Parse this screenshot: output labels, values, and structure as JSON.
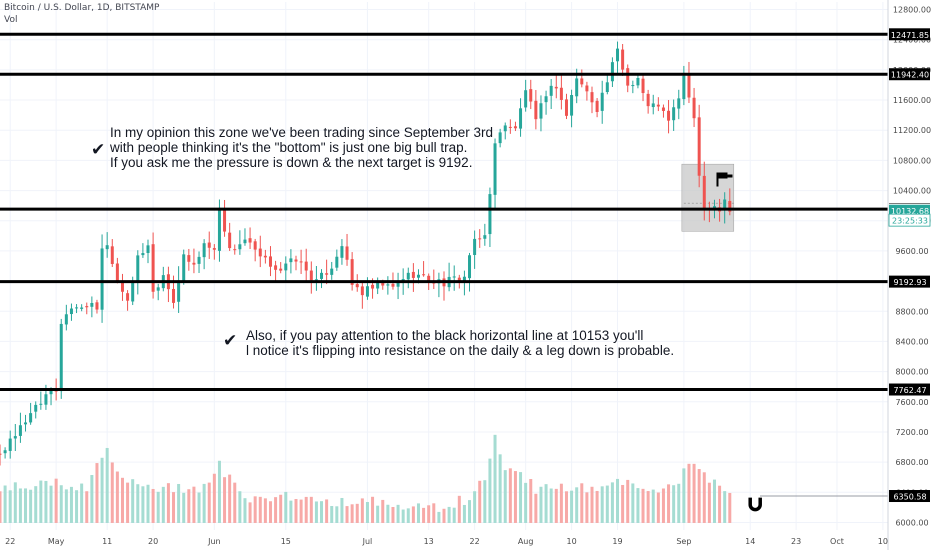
{
  "header": {
    "title": "Bitcoin / U.S. Dollar, 1D, BITSTAMP",
    "volume_label": "Vol"
  },
  "annotations": {
    "note1": {
      "lines": [
        "In my opinion this zone we've been trading since September 3rd",
        "with people thinking it's the \"bottom\" is just one big bull trap.",
        "If you ask me the pressure is down & the next target is 9192."
      ]
    },
    "note2": {
      "lines": [
        "Also, if you pay attention to the black horizontal line at 10153 you'll",
        "l notice it's flipping into resistance on the daily & a leg down is probable."
      ]
    },
    "check_icon": "check-mark-icon",
    "magnet_icon": "magnet-icon",
    "flag_icon": "flag-icon"
  },
  "colors": {
    "up": "#26a69a",
    "down": "#ef5350",
    "vol_up": "#a5dcd2",
    "vol_down": "#f7a9a7",
    "level_line": "#000000",
    "grid": "#f0f3fa",
    "box": "#c8c8c8"
  },
  "chart_data": {
    "type": "candlestick",
    "title": "Bitcoin / U.S. Dollar, 1D, BITSTAMP",
    "xlabel": "",
    "ylabel": "",
    "ylim": [
      5900,
      12900
    ],
    "y_ticks": [
      6000,
      6400,
      6800,
      7200,
      7600,
      8000,
      8400,
      8800,
      9200,
      9600,
      10000,
      10400,
      10800,
      11200,
      11600,
      12000,
      12400,
      12800
    ],
    "y_tick_labels": [
      "6000.00",
      "6400.00",
      "6800.00",
      "7200.00",
      "7600.00",
      "8000.00",
      "8400.00",
      "8800.00",
      "9200.00",
      "9600.00",
      "10000.00",
      "10400.00",
      "10800.00",
      "11200.00",
      "11600.00",
      "12000.00",
      "12400.00",
      "12800.00"
    ],
    "x_ticks": [
      {
        "label": "22",
        "day": -9
      },
      {
        "label": "May",
        "day": 0
      },
      {
        "label": "11",
        "day": 10
      },
      {
        "label": "20",
        "day": 19
      },
      {
        "label": "Jun",
        "day": 31
      },
      {
        "label": "15",
        "day": 45
      },
      {
        "label": "Jul",
        "day": 61
      },
      {
        "label": "13",
        "day": 73
      },
      {
        "label": "22",
        "day": 82
      },
      {
        "label": "Aug",
        "day": 92
      },
      {
        "label": "10",
        "day": 101
      },
      {
        "label": "19",
        "day": 110
      },
      {
        "label": "Sep",
        "day": 123
      },
      {
        "label": "14",
        "day": 136
      },
      {
        "label": "23",
        "day": 145
      },
      {
        "label": "Oct",
        "day": 153
      },
      {
        "label": "10",
        "day": 162
      }
    ],
    "levels": [
      {
        "value": 12471.85,
        "label": "12471.85"
      },
      {
        "value": 11942.4,
        "label": "11942.40"
      },
      {
        "value": 10153.46,
        "label": "10153.46"
      },
      {
        "value": 9192.93,
        "label": "9192.93"
      },
      {
        "value": 7762.47,
        "label": "7762.47"
      }
    ],
    "price_tags": [
      {
        "value": 10146.61,
        "label": "10146.61",
        "style": "plain"
      },
      {
        "value": 10132.68,
        "label": "10132.68",
        "style": "current"
      },
      {
        "value": 10008,
        "label": "23:25:33",
        "style": "countdown"
      },
      {
        "value": 6350.58,
        "label": "6350.58",
        "style": "dark"
      }
    ],
    "zone_box": {
      "day_start": 123,
      "day_end": 132,
      "high": 10750,
      "low": 9860
    },
    "anchors": [
      [
        -11,
        6900
      ],
      [
        -9,
        7100
      ],
      [
        -6,
        7300
      ],
      [
        -3,
        7600
      ],
      [
        0,
        7750
      ],
      [
        1,
        8650
      ],
      [
        3,
        8800
      ],
      [
        6,
        8900
      ],
      [
        8,
        8800
      ],
      [
        9,
        9600
      ],
      [
        10,
        9700
      ],
      [
        12,
        9200
      ],
      [
        14,
        8950
      ],
      [
        16,
        9500
      ],
      [
        18,
        9700
      ],
      [
        19,
        9050
      ],
      [
        21,
        9300
      ],
      [
        23,
        8950
      ],
      [
        25,
        9500
      ],
      [
        27,
        9400
      ],
      [
        29,
        9700
      ],
      [
        31,
        9600
      ],
      [
        32,
        10200
      ],
      [
        34,
        9600
      ],
      [
        37,
        9750
      ],
      [
        40,
        9500
      ],
      [
        44,
        9350
      ],
      [
        47,
        9500
      ],
      [
        51,
        9180
      ],
      [
        54,
        9400
      ],
      [
        56,
        9700
      ],
      [
        58,
        9150
      ],
      [
        60,
        9050
      ],
      [
        62,
        9100
      ],
      [
        64,
        9150
      ],
      [
        66,
        9100
      ],
      [
        68,
        9250
      ],
      [
        70,
        9300
      ],
      [
        72,
        9250
      ],
      [
        74,
        9200
      ],
      [
        76,
        9180
      ],
      [
        78,
        9220
      ],
      [
        80,
        9250
      ],
      [
        81,
        9550
      ],
      [
        82,
        9700
      ],
      [
        84,
        9800
      ],
      [
        86,
        11000
      ],
      [
        88,
        11300
      ],
      [
        90,
        11200
      ],
      [
        92,
        11750
      ],
      [
        94,
        11300
      ],
      [
        96,
        11700
      ],
      [
        98,
        11800
      ],
      [
        100,
        11400
      ],
      [
        102,
        11900
      ],
      [
        104,
        11700
      ],
      [
        106,
        11500
      ],
      [
        108,
        11850
      ],
      [
        110,
        12250
      ],
      [
        112,
        11800
      ],
      [
        114,
        11900
      ],
      [
        116,
        11500
      ],
      [
        118,
        11550
      ],
      [
        120,
        11300
      ],
      [
        122,
        11650
      ],
      [
        123,
        11900
      ],
      [
        124,
        11650
      ],
      [
        125,
        11300
      ],
      [
        126,
        10600
      ],
      [
        127,
        10200
      ],
      [
        128,
        10150
      ],
      [
        129,
        10250
      ],
      [
        130,
        10150
      ],
      [
        131,
        10300
      ],
      [
        132,
        10133
      ]
    ],
    "volume_profile": [
      [
        -11,
        6420
      ],
      [
        -9,
        6470
      ],
      [
        -6,
        6480
      ],
      [
        -3,
        6560
      ],
      [
        0,
        6520
      ],
      [
        3,
        6480
      ],
      [
        6,
        6420
      ],
      [
        9,
        6860
      ],
      [
        10,
        6950
      ],
      [
        12,
        6600
      ],
      [
        16,
        6500
      ],
      [
        20,
        6450
      ],
      [
        25,
        6440
      ],
      [
        30,
        6480
      ],
      [
        32,
        6780
      ],
      [
        36,
        6350
      ],
      [
        40,
        6320
      ],
      [
        45,
        6350
      ],
      [
        50,
        6300
      ],
      [
        55,
        6280
      ],
      [
        60,
        6280
      ],
      [
        65,
        6240
      ],
      [
        70,
        6180
      ],
      [
        75,
        6200
      ],
      [
        80,
        6300
      ],
      [
        84,
        6550
      ],
      [
        86,
        7100
      ],
      [
        88,
        6750
      ],
      [
        90,
        6700
      ],
      [
        94,
        6450
      ],
      [
        98,
        6430
      ],
      [
        102,
        6500
      ],
      [
        106,
        6430
      ],
      [
        110,
        6580
      ],
      [
        114,
        6400
      ],
      [
        118,
        6380
      ],
      [
        122,
        6540
      ],
      [
        124,
        6760
      ],
      [
        126,
        6700
      ],
      [
        128,
        6600
      ],
      [
        130,
        6520
      ],
      [
        132,
        6420
      ]
    ]
  }
}
